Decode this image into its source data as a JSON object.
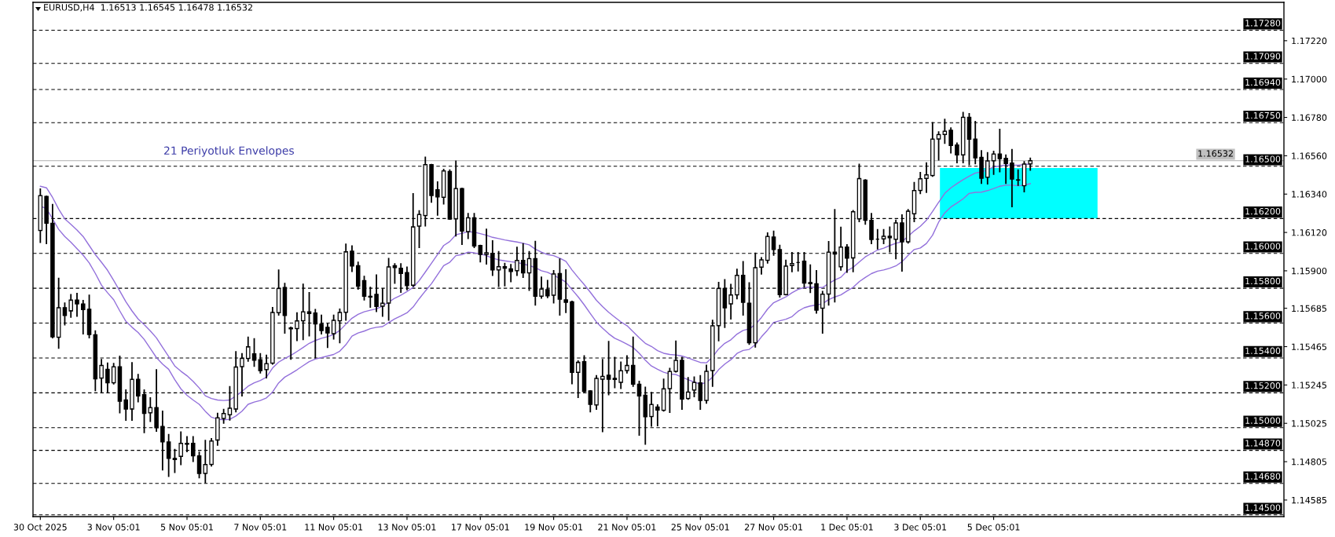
{
  "chart_data": {
    "type": "candlestick",
    "title": "EURUSD,H4  1.16513 1.16545 1.16478 1.16532",
    "annotations": [
      "21 Periyotluk Envelopes"
    ],
    "categories": [
      "30 Oct 2025",
      null,
      null,
      null,
      null,
      null,
      null,
      null,
      null,
      null,
      null,
      null,
      "3 Nov 05:01",
      null,
      null,
      null,
      null,
      null,
      null,
      null,
      null,
      null,
      null,
      null,
      "5 Nov 05:01",
      null,
      null,
      null,
      null,
      null,
      null,
      null,
      null,
      null,
      null,
      null,
      "7 Nov 05:01",
      null,
      null,
      null,
      null,
      null,
      null,
      null,
      null,
      null,
      null,
      null,
      "11 Nov 05:01",
      null,
      null,
      null,
      null,
      null,
      null,
      null,
      null,
      null,
      null,
      null,
      "13 Nov 05:01",
      null,
      null,
      null,
      null,
      null,
      null,
      null,
      null,
      null,
      null,
      null,
      "17 Nov 05:01",
      null,
      null,
      null,
      null,
      null,
      null,
      null,
      null,
      null,
      null,
      null,
      "19 Nov 05:01",
      null,
      null,
      null,
      null,
      null,
      null,
      null,
      null,
      null,
      null,
      null,
      "21 Nov 05:01",
      null,
      null,
      null,
      null,
      null,
      null,
      null,
      null,
      null,
      null,
      null,
      "25 Nov 05:01",
      null,
      null,
      null,
      null,
      null,
      null,
      null,
      null,
      null,
      null,
      null,
      "27 Nov 05:01",
      null,
      null,
      null,
      null,
      null,
      null,
      null,
      null,
      null,
      null,
      null,
      "1 Dec 05:01",
      null,
      null,
      null,
      null,
      null,
      null,
      null,
      null,
      null,
      null,
      null,
      "3 Dec 05:01",
      null,
      null,
      null,
      null,
      null,
      null,
      null,
      null,
      null,
      null,
      null,
      "5 Dec 05:01",
      null,
      null,
      null,
      null,
      null,
      null,
      null,
      null,
      null,
      null,
      null,
      null,
      null,
      null,
      null,
      null,
      null,
      null,
      null,
      null,
      null,
      null,
      null,
      null,
      null,
      null,
      null,
      null,
      null,
      null,
      null,
      null,
      null,
      null,
      null,
      null,
      null,
      null,
      null,
      null,
      null,
      null,
      null,
      null,
      null,
      null,
      null
    ],
    "ohlc": [
      [
        1.16131,
        1.16369,
        1.16064,
        1.16332
      ],
      [
        1.16327,
        1.16327,
        1.16057,
        1.16173
      ],
      [
        1.16173,
        1.1628,
        1.15516,
        1.15521
      ],
      [
        1.15518,
        1.15856,
        1.15457,
        1.15689
      ],
      [
        1.15689,
        1.15714,
        1.15591,
        1.15643
      ],
      [
        1.1567,
        1.15763,
        1.15635,
        1.15732
      ],
      [
        1.15732,
        1.15769,
        1.1564,
        1.1571
      ],
      [
        1.1571,
        1.15729,
        1.15539,
        1.15677
      ],
      [
        1.1568,
        1.15759,
        1.15516,
        1.15534
      ],
      [
        1.15533,
        1.15554,
        1.15213,
        1.1528
      ],
      [
        1.15284,
        1.1539,
        1.15201,
        1.15357
      ],
      [
        1.15335,
        1.1537,
        1.15205,
        1.15257
      ],
      [
        1.15257,
        1.15368,
        1.15252,
        1.1535
      ],
      [
        1.1535,
        1.15409,
        1.15086,
        1.15152
      ],
      [
        1.15159,
        1.15216,
        1.15043,
        1.15107
      ],
      [
        1.15107,
        1.15372,
        1.15043,
        1.15278
      ],
      [
        1.15278,
        1.15305,
        1.15149,
        1.15182
      ],
      [
        1.1519,
        1.15216,
        1.14973,
        1.15082
      ],
      [
        1.15085,
        1.15171,
        1.15037,
        1.15116
      ],
      [
        1.15116,
        1.15332,
        1.14981,
        1.15
      ],
      [
        1.15007,
        1.15094,
        1.14759,
        1.14918
      ],
      [
        1.14918,
        1.1496,
        1.14722,
        1.14824
      ],
      [
        1.14824,
        1.14874,
        1.14744,
        1.14817
      ],
      [
        1.14835,
        1.14975,
        1.14789,
        1.14911
      ],
      [
        1.14905,
        1.14948,
        1.14863,
        1.1491
      ],
      [
        1.14911,
        1.14948,
        1.14807,
        1.14839
      ],
      [
        1.14839,
        1.14859,
        1.14714,
        1.14737
      ],
      [
        1.14737,
        1.14926,
        1.14685,
        1.14789
      ],
      [
        1.14789,
        1.14936,
        1.14781,
        1.14924
      ],
      [
        1.14929,
        1.15082,
        1.149,
        1.15057
      ],
      [
        1.15052,
        1.15104,
        1.15027,
        1.15082
      ],
      [
        1.15074,
        1.15235,
        1.15045,
        1.15112
      ],
      [
        1.15107,
        1.15435,
        1.15092,
        1.15348
      ],
      [
        1.1535,
        1.15424,
        1.15183,
        1.15398
      ],
      [
        1.15397,
        1.15518,
        1.15382,
        1.15464
      ],
      [
        1.15424,
        1.15509,
        1.15353,
        1.15387
      ],
      [
        1.1539,
        1.15424,
        1.15315,
        1.15327
      ],
      [
        1.15333,
        1.15415,
        1.15287,
        1.15368
      ],
      [
        1.1537,
        1.15688,
        1.15365,
        1.15661
      ],
      [
        1.15659,
        1.15903,
        1.15647,
        1.15799
      ],
      [
        1.15804,
        1.15827,
        1.15543,
        1.15643
      ],
      [
        1.15573,
        1.15576,
        1.15394,
        1.15567
      ],
      [
        1.15568,
        1.15658,
        1.15501,
        1.15613
      ],
      [
        1.15613,
        1.15823,
        1.15506,
        1.15665
      ],
      [
        1.15665,
        1.15774,
        1.15528,
        1.15655
      ],
      [
        1.15658,
        1.15677,
        1.15402,
        1.15595
      ],
      [
        1.15594,
        1.15644,
        1.15539,
        1.15557
      ],
      [
        1.15576,
        1.15595,
        1.15461,
        1.15543
      ],
      [
        1.15539,
        1.15644,
        1.1551,
        1.15616
      ],
      [
        1.15613,
        1.1568,
        1.15488,
        1.15661
      ],
      [
        1.15661,
        1.16052,
        1.15618,
        1.16009
      ],
      [
        1.16013,
        1.16042,
        1.15897,
        1.15927
      ],
      [
        1.1593,
        1.15949,
        1.15796,
        1.15811
      ],
      [
        1.15844,
        1.15868,
        1.15734,
        1.15754
      ],
      [
        1.15754,
        1.15804,
        1.15692,
        1.15749
      ],
      [
        1.15765,
        1.15875,
        1.15667,
        1.15695
      ],
      [
        1.15696,
        1.15796,
        1.1564,
        1.15714
      ],
      [
        1.15714,
        1.1597,
        1.15618,
        1.15923
      ],
      [
        1.1593,
        1.1594,
        1.15829,
        1.15918
      ],
      [
        1.15915,
        1.1594,
        1.15778,
        1.15885
      ],
      [
        1.1589,
        1.1592,
        1.15792,
        1.15815
      ],
      [
        1.15817,
        1.16342,
        1.15811,
        1.16152
      ],
      [
        1.16156,
        1.16243,
        1.16034,
        1.16223
      ],
      [
        1.16217,
        1.16551,
        1.16158,
        1.16509
      ],
      [
        1.16509,
        1.16509,
        1.16295,
        1.16332
      ],
      [
        1.16365,
        1.16409,
        1.1622,
        1.16324
      ],
      [
        1.16321,
        1.16481,
        1.16284,
        1.16473
      ],
      [
        1.1647,
        1.16478,
        1.16196,
        1.16196
      ],
      [
        1.16198,
        1.16528,
        1.16101,
        1.16372
      ],
      [
        1.16372,
        1.16372,
        1.16052,
        1.16128
      ],
      [
        1.16124,
        1.16228,
        1.16086,
        1.16204
      ],
      [
        1.16204,
        1.16228,
        1.16034,
        1.16042
      ],
      [
        1.16045,
        1.16045,
        1.15952,
        1.15994
      ],
      [
        1.15994,
        1.16138,
        1.1594,
        1.16004
      ],
      [
        1.16,
        1.16071,
        1.15874,
        1.15905
      ],
      [
        1.15905,
        1.16009,
        1.15811,
        1.15924
      ],
      [
        1.15924,
        1.15942,
        1.15815,
        1.15915
      ],
      [
        1.15912,
        1.15935,
        1.15838,
        1.15896
      ],
      [
        1.159,
        1.16034,
        1.15874,
        1.1596
      ],
      [
        1.1596,
        1.16054,
        1.15863,
        1.15888
      ],
      [
        1.15888,
        1.16009,
        1.15789,
        1.1597
      ],
      [
        1.1597,
        1.16068,
        1.15704,
        1.15754
      ],
      [
        1.15754,
        1.15863,
        1.15744,
        1.15796
      ],
      [
        1.15792,
        1.15844,
        1.15747,
        1.15756
      ],
      [
        1.15759,
        1.159,
        1.15717,
        1.15882
      ],
      [
        1.15885,
        1.15967,
        1.15647,
        1.15737
      ],
      [
        1.15734,
        1.15905,
        1.15662,
        1.15719
      ],
      [
        1.15722,
        1.15725,
        1.15253,
        1.15317
      ],
      [
        1.15317,
        1.15382,
        1.15174,
        1.15375
      ],
      [
        1.15379,
        1.15412,
        1.15205,
        1.15208
      ],
      [
        1.15211,
        1.15211,
        1.15092,
        1.15134
      ],
      [
        1.1513,
        1.15298,
        1.15107,
        1.15283
      ],
      [
        1.15278,
        1.1539,
        1.14978,
        1.15295
      ],
      [
        1.15301,
        1.15494,
        1.1519,
        1.15278
      ],
      [
        1.15283,
        1.15402,
        1.15231,
        1.15277
      ],
      [
        1.1526,
        1.15375,
        1.15226,
        1.15327
      ],
      [
        1.15327,
        1.15412,
        1.15315,
        1.15357
      ],
      [
        1.15357,
        1.15518,
        1.15238,
        1.1525
      ],
      [
        1.1525,
        1.15265,
        1.14958,
        1.15182
      ],
      [
        1.15186,
        1.15231,
        1.14906,
        1.15063
      ],
      [
        1.15064,
        1.15201,
        1.1501,
        1.15134
      ],
      [
        1.15119,
        1.1513,
        1.15012,
        1.15101
      ],
      [
        1.151,
        1.15278,
        1.15097,
        1.15223
      ],
      [
        1.15223,
        1.15339,
        1.15089,
        1.15323
      ],
      [
        1.15323,
        1.15496,
        1.1532,
        1.15387
      ],
      [
        1.15387,
        1.15402,
        1.15107,
        1.15164
      ],
      [
        1.15167,
        1.15286,
        1.15164,
        1.15204
      ],
      [
        1.15216,
        1.1529,
        1.15179,
        1.1526
      ],
      [
        1.15257,
        1.15298,
        1.15107,
        1.15156
      ],
      [
        1.15156,
        1.15357,
        1.15141,
        1.15324
      ],
      [
        1.15327,
        1.15615,
        1.15238,
        1.15585
      ],
      [
        1.15585,
        1.15833,
        1.15499,
        1.15799
      ],
      [
        1.15799,
        1.15848,
        1.15576,
        1.15687
      ],
      [
        1.1571,
        1.15821,
        1.15625,
        1.15762
      ],
      [
        1.15762,
        1.15908,
        1.1574,
        1.15874
      ],
      [
        1.15874,
        1.15952,
        1.15647,
        1.15719
      ],
      [
        1.15714,
        1.1583,
        1.15479,
        1.15487
      ],
      [
        1.15487,
        1.16,
        1.15464,
        1.15918
      ],
      [
        1.1592,
        1.15975,
        1.15882,
        1.15963
      ],
      [
        1.1596,
        1.16116,
        1.15945,
        1.16097
      ],
      [
        1.16094,
        1.16126,
        1.1599,
        1.16022
      ],
      [
        1.16022,
        1.16045,
        1.15751,
        1.15763
      ],
      [
        1.15763,
        1.1596,
        1.15763,
        1.15927
      ],
      [
        1.1593,
        1.16004,
        1.15896,
        1.15942
      ],
      [
        1.15948,
        1.16004,
        1.159,
        1.15948
      ],
      [
        1.15955,
        1.16004,
        1.15807,
        1.15829
      ],
      [
        1.15833,
        1.15933,
        1.15777,
        1.15826
      ],
      [
        1.15826,
        1.159,
        1.15658,
        1.15674
      ],
      [
        1.15685,
        1.15781,
        1.15543,
        1.15766
      ],
      [
        1.15766,
        1.16067,
        1.15704,
        1.16007
      ],
      [
        1.16007,
        1.1625,
        1.15722,
        1.15996
      ],
      [
        1.15923,
        1.16149,
        1.15905,
        1.16037
      ],
      [
        1.16037,
        1.16049,
        1.15893,
        1.15972
      ],
      [
        1.15974,
        1.16245,
        1.15896,
        1.16239
      ],
      [
        1.16198,
        1.1651,
        1.16183,
        1.16429
      ],
      [
        1.16421,
        1.16421,
        1.16168,
        1.1619
      ],
      [
        1.1619,
        1.16228,
        1.16057,
        1.16079
      ],
      [
        1.16082,
        1.16135,
        1.16027,
        1.16082
      ],
      [
        1.16083,
        1.16135,
        1.16057,
        1.16098
      ],
      [
        1.16098,
        1.1615,
        1.1601,
        1.16089
      ],
      [
        1.1608,
        1.1619,
        1.1597,
        1.16175
      ],
      [
        1.16175,
        1.1622,
        1.15899,
        1.16066
      ],
      [
        1.16066,
        1.1625,
        1.1606,
        1.16242
      ],
      [
        1.16227,
        1.16406,
        1.16183,
        1.16361
      ],
      [
        1.16361,
        1.16463,
        1.16344,
        1.16428
      ],
      [
        1.16429,
        1.16518,
        1.16351,
        1.16451
      ],
      [
        1.16446,
        1.16749,
        1.16443,
        1.16656
      ],
      [
        1.16656,
        1.16696,
        1.16536,
        1.16682
      ],
      [
        1.16682,
        1.16768,
        1.16632,
        1.16701
      ],
      [
        1.16707,
        1.16719,
        1.16577,
        1.16619
      ],
      [
        1.16622,
        1.16632,
        1.16521,
        1.16565
      ],
      [
        1.16565,
        1.16808,
        1.16521,
        1.16781
      ],
      [
        1.16781,
        1.16801,
        1.1651,
        1.16655
      ],
      [
        1.16656,
        1.16756,
        1.16515,
        1.16548
      ],
      [
        1.16551,
        1.16588,
        1.16402,
        1.16431
      ],
      [
        1.16436,
        1.16577,
        1.16399,
        1.16531
      ],
      [
        1.16531,
        1.16585,
        1.16454,
        1.1657
      ],
      [
        1.1657,
        1.16711,
        1.16469,
        1.16543
      ],
      [
        1.16545,
        1.16563,
        1.16403,
        1.16515
      ],
      [
        1.16518,
        1.16595,
        1.16269,
        1.16426
      ],
      [
        1.16422,
        1.16478,
        1.16391,
        1.1642
      ],
      [
        1.16388,
        1.16525,
        1.16354,
        1.16513
      ],
      [
        1.16513,
        1.16545,
        1.16478,
        1.16532
      ],
      null,
      null,
      null,
      null,
      null,
      null,
      null,
      null,
      null,
      null,
      null,
      null,
      null,
      null,
      null,
      null,
      null,
      null,
      null,
      null,
      null,
      null,
      null,
      null,
      null,
      null,
      null,
      null,
      null,
      null,
      null,
      null,
      null,
      null,
      null,
      null,
      null,
      null,
      null,
      null,
      null
    ],
    "series": [
      {
        "type": "line",
        "color": "#9370db",
        "values": [
          1.16385,
          1.16376,
          1.16321,
          1.16254,
          1.16198,
          1.16167,
          1.16134,
          1.16097,
          1.16045,
          1.15993,
          1.15949,
          1.15903,
          1.15845,
          1.15784,
          1.15722,
          1.1567,
          1.15624,
          1.15591,
          1.15555,
          1.15515,
          1.15461,
          1.15408,
          1.15354,
          1.15324,
          1.15298,
          1.15266,
          1.15228,
          1.15183,
          1.15167,
          1.15159,
          1.15156,
          1.15159,
          1.15182,
          1.15208,
          1.15238,
          1.15257,
          1.15271,
          1.1529,
          1.15342,
          1.15376,
          1.15397,
          1.15415,
          1.15437,
          1.1546,
          1.15484,
          1.155,
          1.15513,
          1.15522,
          1.15534,
          1.15558,
          1.15594,
          1.15628,
          1.1565,
          1.15665,
          1.15674,
          1.15682,
          1.15698,
          1.1572,
          1.15743,
          1.1576,
          1.15781,
          1.15805,
          1.15844,
          1.15893,
          1.15943,
          1.15994,
          1.16045,
          1.16068,
          1.16107,
          1.16115,
          1.16124,
          1.16122,
          1.16113,
          1.16104,
          1.16092,
          1.16085,
          1.16077,
          1.16071,
          1.16065,
          1.16058,
          1.16049,
          1.16024,
          1.16007,
          1.15993,
          1.15987,
          1.15972,
          1.15954,
          1.15905,
          1.15862,
          1.15821,
          1.15777,
          1.15731,
          1.15695,
          1.15662,
          1.15634,
          1.15607,
          1.15585,
          1.15551,
          1.15516,
          1.15484,
          1.15466,
          1.15442,
          1.15427,
          1.1542,
          1.15417,
          1.15411,
          1.154,
          1.15387,
          1.15374,
          1.15372,
          1.15406,
          1.15452,
          1.15484,
          1.15504,
          1.15537,
          1.15558,
          1.15567,
          1.15592,
          1.15632,
          1.1568,
          1.15717,
          1.15734,
          1.1575,
          1.15774,
          1.15793,
          1.15804,
          1.15807,
          1.15805,
          1.15804,
          1.15827,
          1.15847,
          1.15863,
          1.159,
          1.1592,
          1.1595,
          1.1598,
          1.16,
          1.16019,
          1.1603,
          1.16045,
          1.16058,
          1.16067,
          1.16098,
          1.16129,
          1.16155,
          1.1619,
          1.1624,
          1.16293,
          1.16344,
          1.16376,
          1.164,
          1.16423,
          1.16443,
          1.16461,
          1.16467,
          1.16479,
          1.16496,
          1.16501,
          1.16507,
          1.16506,
          1.16506,
          1.16509,
          1.16513,
          null,
          null,
          null,
          null,
          null,
          null,
          null,
          null,
          null,
          null,
          null,
          null,
          null,
          null,
          null,
          null,
          null,
          null,
          null,
          null,
          null,
          null,
          null,
          null,
          null,
          null,
          null,
          null,
          null,
          null,
          null,
          null,
          null,
          null,
          null,
          null,
          null,
          null,
          null,
          null,
          null
        ]
      },
      {
        "type": "line",
        "color": "#9370db",
        "values": [
          1.16271,
          1.16257,
          1.16198,
          1.16138,
          1.16097,
          1.16064,
          1.16027,
          1.1599,
          1.15945,
          1.15885,
          1.15818,
          1.15774,
          1.15734,
          1.1567,
          1.1561,
          1.15576,
          1.15546,
          1.15506,
          1.15454,
          1.15402,
          1.15365,
          1.15335,
          1.15275,
          1.15223,
          1.15186,
          1.15159,
          1.15134,
          1.15094,
          1.1506,
          1.15049,
          1.15045,
          1.15048,
          1.15067,
          1.15095,
          1.15134,
          1.15147,
          1.15156,
          1.15171,
          1.15204,
          1.15257,
          1.1529,
          1.1531,
          1.15332,
          1.15356,
          1.15379,
          1.15394,
          1.15402,
          1.15411,
          1.1542,
          1.15439,
          1.15476,
          1.15525,
          1.15543,
          1.15554,
          1.15568,
          1.15576,
          1.1558,
          1.15603,
          1.15624,
          1.15641,
          1.15659,
          1.15692,
          1.1574,
          1.15784,
          1.15826,
          1.15878,
          1.1593,
          1.15949,
          1.15987,
          1.15993,
          1.16007,
          1.16003,
          1.15997,
          1.15987,
          1.15972,
          1.15963,
          1.15957,
          1.15952,
          1.15948,
          1.15939,
          1.1593,
          1.15918,
          1.159,
          1.15891,
          1.15874,
          1.15856,
          1.15835,
          1.15792,
          1.15751,
          1.15705,
          1.15655,
          1.15606,
          1.15571,
          1.15539,
          1.15513,
          1.15497,
          1.15479,
          1.1546,
          1.15427,
          1.15387,
          1.15354,
          1.15335,
          1.15318,
          1.15308,
          1.15305,
          1.1529,
          1.15275,
          1.15262,
          1.1525,
          1.15259,
          1.1529,
          1.15333,
          1.15365,
          1.1539,
          1.15426,
          1.15443,
          1.15449,
          1.15476,
          1.15521,
          1.1556,
          1.15604,
          1.15613,
          1.15622,
          1.15637,
          1.15668,
          1.15688,
          1.15698,
          1.15704,
          1.15711,
          1.15735,
          1.1575,
          1.15762,
          1.15784,
          1.15805,
          1.15838,
          1.15862,
          1.15884,
          1.15898,
          1.15905,
          1.15915,
          1.15928,
          1.15952,
          1.15989,
          1.16022,
          1.16031,
          1.16057,
          1.16104,
          1.16179,
          1.16232,
          1.16266,
          1.16289,
          1.16313,
          1.16344,
          1.1635,
          1.16351,
          1.1636,
          1.16372,
          1.16385,
          1.16391,
          1.16391,
          1.16388,
          1.16391,
          1.164,
          null,
          null,
          null,
          null,
          null,
          null,
          null,
          null,
          null,
          null,
          null,
          null,
          null,
          null,
          null,
          null,
          null,
          null,
          null,
          null,
          null,
          null,
          null,
          null,
          null,
          null,
          null,
          null,
          null,
          null,
          null,
          null,
          null,
          null,
          null,
          null,
          null,
          null,
          null,
          null,
          null
        ]
      }
    ],
    "ylim": [
      1.1449,
      1.1744
    ],
    "yticks": [
      {
        "value": 1.1722,
        "label": "1.17220"
      },
      {
        "value": 1.17,
        "label": "1.17000"
      },
      {
        "value": 1.1678,
        "label": "1.16780"
      },
      {
        "value": 1.1656,
        "label": "1.16560"
      },
      {
        "value": 1.1634,
        "label": "1.16340"
      },
      {
        "value": 1.1612,
        "label": "1.16120"
      },
      {
        "value": 1.159,
        "label": "1.15900"
      },
      {
        "value": 1.15685,
        "label": "1.15685"
      },
      {
        "value": 1.15465,
        "label": "1.15465"
      },
      {
        "value": 1.15245,
        "label": "1.15245"
      },
      {
        "value": 1.15025,
        "label": "1.15025"
      },
      {
        "value": 1.14805,
        "label": "1.14805"
      },
      {
        "value": 1.14585,
        "label": "1.14585"
      }
    ],
    "ref_lines": [
      {
        "axis": "y",
        "value": 1.1728,
        "label": "1.17280",
        "color": "#000000",
        "line_style": "dashed"
      },
      {
        "axis": "y",
        "value": 1.1709,
        "label": "1.17090",
        "color": "#000000",
        "line_style": "dashed"
      },
      {
        "axis": "y",
        "value": 1.1694,
        "label": "1.16940",
        "color": "#000000",
        "line_style": "dashed"
      },
      {
        "axis": "y",
        "value": 1.1675,
        "label": "1.16750",
        "color": "#000000",
        "line_style": "dashed"
      },
      {
        "axis": "y",
        "value": 1.165,
        "label": "1.16500",
        "color": "#000000",
        "line_style": "dashed"
      },
      {
        "axis": "y",
        "value": 1.162,
        "label": "1.16200",
        "color": "#000000",
        "line_style": "dashed"
      },
      {
        "axis": "y",
        "value": 1.16,
        "label": "1.16000",
        "color": "#000000",
        "line_style": "dashed"
      },
      {
        "axis": "y",
        "value": 1.158,
        "label": "1.15800",
        "color": "#000000",
        "line_style": "dashed"
      },
      {
        "axis": "y",
        "value": 1.156,
        "label": "1.15600",
        "color": "#000000",
        "line_style": "dashed"
      },
      {
        "axis": "y",
        "value": 1.154,
        "label": "1.15400",
        "color": "#000000",
        "line_style": "dashed"
      },
      {
        "axis": "y",
        "value": 1.152,
        "label": "1.15200",
        "color": "#000000",
        "line_style": "dashed"
      },
      {
        "axis": "y",
        "value": 1.15,
        "label": "1.15000",
        "color": "#000000",
        "line_style": "dashed"
      },
      {
        "axis": "y",
        "value": 1.1487,
        "label": "1.14870",
        "color": "#000000",
        "line_style": "dashed"
      },
      {
        "axis": "y",
        "value": 1.1468,
        "label": "1.14680",
        "color": "#000000",
        "line_style": "dashed"
      },
      {
        "axis": "y",
        "value": 1.145,
        "label": "1.14500",
        "color": "#000000",
        "line_style": "dashed"
      },
      {
        "axis": "y",
        "value": 1.16532,
        "label": "1.16532",
        "color": "#c0c0c0",
        "line_style": "solid"
      }
    ],
    "bands": [
      {
        "axis": "y",
        "from": 1.162,
        "to": 1.1649,
        "color": "#00ffff"
      }
    ]
  }
}
